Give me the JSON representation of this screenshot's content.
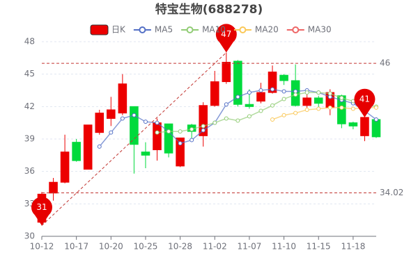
{
  "chart_data": {
    "type": "candlestick",
    "title": "特宝生物(688278)",
    "name": "日K",
    "up_color": "#ec0000",
    "down_color": "#00da3c",
    "categories": [
      "10-12",
      null,
      null,
      "10-17",
      null,
      null,
      "10-20",
      null,
      null,
      "10-25",
      null,
      null,
      "10-28",
      null,
      null,
      "11-02",
      null,
      null,
      "11-07",
      null,
      null,
      "11-10",
      null,
      null,
      "11-15",
      null,
      null,
      "11-18",
      null,
      null
    ],
    "open": [
      31.3,
      34.0,
      35.0,
      38.7,
      36.2,
      39.6,
      40.9,
      41.4,
      42.0,
      37.8,
      38.0,
      40.4,
      36.5,
      40.3,
      39.3,
      42.1,
      44.3,
      46.2,
      42.2,
      42.5,
      43.3,
      44.9,
      44.4,
      42.1,
      42.8,
      41.9,
      43.0,
      40.5,
      39.3,
      40.8
    ],
    "close": [
      33.9,
      35.0,
      37.8,
      37.0,
      40.3,
      41.4,
      41.7,
      44.1,
      38.5,
      37.5,
      40.5,
      37.7,
      39.1,
      39.7,
      42.1,
      44.3,
      46.1,
      42.2,
      42.0,
      43.3,
      45.2,
      44.4,
      42.1,
      42.8,
      42.3,
      43.3,
      40.4,
      40.2,
      41.0,
      39.2
    ],
    "low": [
      31.0,
      33.3,
      34.9,
      36.9,
      36.2,
      39.4,
      40.2,
      41.2,
      35.8,
      36.3,
      37.0,
      37.3,
      36.4,
      38.9,
      38.3,
      42.0,
      44.1,
      42.0,
      41.8,
      42.3,
      43.2,
      44.0,
      42.0,
      41.9,
      41.8,
      41.2,
      40.0,
      39.9,
      38.8,
      39.1
    ],
    "high": [
      34.1,
      35.4,
      39.4,
      39.0,
      40.3,
      41.7,
      42.9,
      45.0,
      42.0,
      38.7,
      40.9,
      40.4,
      39.1,
      40.4,
      42.4,
      45.3,
      47,
      46.3,
      43.6,
      44.2,
      45.8,
      45.0,
      45.9,
      43.1,
      43.0,
      43.6,
      43.1,
      40.6,
      41.1,
      41.0
    ],
    "series": [
      {
        "name": "MA5",
        "color": "#5470c6",
        "values": [
          null,
          null,
          null,
          null,
          null,
          38.3,
          39.6,
          40.9,
          41.2,
          40.6,
          40.5,
          39.7,
          38.6,
          38.9,
          39.8,
          40.5,
          42.2,
          42.9,
          43.3,
          43.5,
          43.6,
          43.4,
          43.4,
          43.5,
          43.3,
          42.9,
          42.6,
          42.3,
          41.6,
          40.8
        ]
      },
      {
        "name": "MA10",
        "color": "#91cc75",
        "values": [
          null,
          null,
          null,
          null,
          null,
          null,
          null,
          null,
          null,
          null,
          39.6,
          39.7,
          39.7,
          39.9,
          40.2,
          40.5,
          40.9,
          40.7,
          41.1,
          41.6,
          42.1,
          42.7,
          43.1,
          43.3,
          43.3,
          43.2,
          42.8,
          42.5,
          42.2,
          42.0
        ]
      },
      {
        "name": "MA20",
        "color": "#fac858",
        "values": [
          null,
          null,
          null,
          null,
          null,
          null,
          null,
          null,
          null,
          null,
          null,
          null,
          null,
          null,
          null,
          null,
          null,
          null,
          null,
          null,
          40.8,
          41.2,
          41.4,
          41.7,
          41.8,
          41.9,
          41.9,
          41.8,
          41.9,
          41.9
        ]
      },
      {
        "name": "MA30",
        "color": "#ee6666",
        "values": [
          null,
          null,
          null,
          null,
          null,
          null,
          null,
          null,
          null,
          null,
          null,
          null,
          null,
          null,
          null,
          null,
          null,
          null,
          null,
          null,
          null,
          null,
          null,
          null,
          null,
          null,
          null,
          null,
          null,
          null
        ]
      }
    ],
    "mark_lines": [
      46,
      34.02
    ],
    "ylim": [
      30,
      48
    ],
    "yticks": [
      30,
      33,
      36,
      39,
      42,
      45,
      48
    ],
    "grid": true
  }
}
